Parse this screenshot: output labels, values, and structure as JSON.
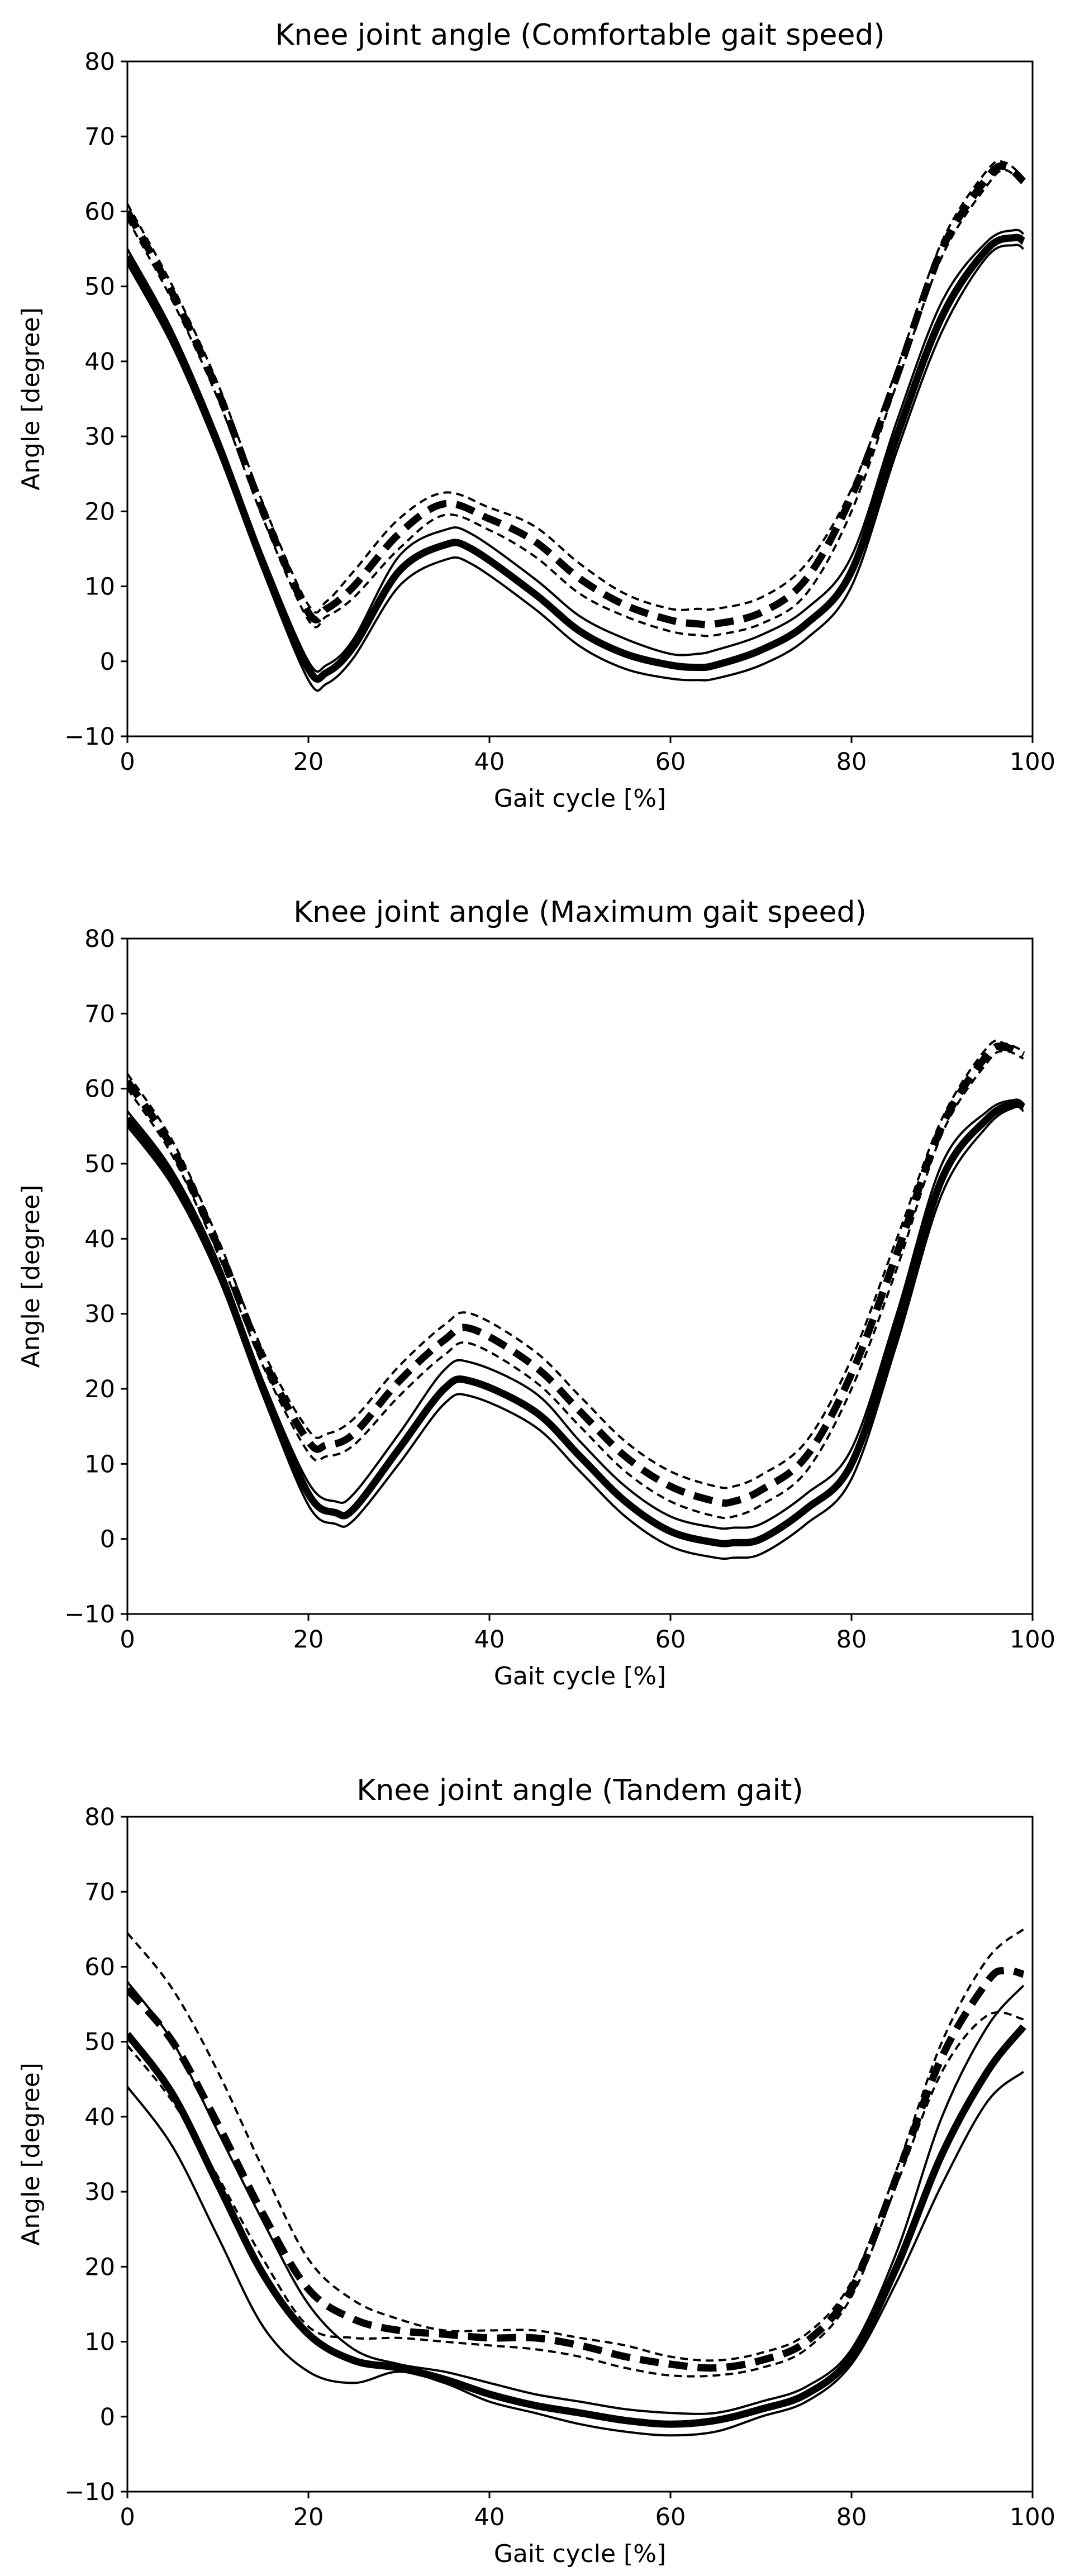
{
  "chart_data": [
    {
      "type": "line",
      "title": "Knee joint angle (Comfortable gait speed)",
      "xlabel": "Gait cycle [%]",
      "ylabel": "Angle [degree]",
      "xlim": [
        0,
        100
      ],
      "ylim": [
        -10,
        80
      ],
      "xticks": [
        "0",
        "20",
        "40",
        "60",
        "80",
        "100"
      ],
      "yticks": [
        "−10",
        "0",
        "10",
        "20",
        "30",
        "40",
        "50",
        "60",
        "70",
        "80"
      ],
      "grid": false,
      "series": [
        {
          "name": "solid-mean",
          "style": "solid-thick",
          "x": [
            0,
            5,
            10,
            15,
            20,
            22,
            25,
            30,
            35,
            38,
            45,
            50,
            55,
            60,
            63,
            65,
            70,
            75,
            80,
            85,
            90,
            95,
            98,
            99
          ],
          "y": [
            54,
            43,
            29,
            13,
            -1,
            -1.5,
            2,
            12,
            15.5,
            15,
            9,
            4,
            1,
            -0.5,
            -0.8,
            -0.5,
            1.5,
            5,
            12,
            30,
            46,
            55,
            56.5,
            56
          ]
        },
        {
          "name": "solid-upper",
          "style": "solid-thin",
          "x": [
            0,
            5,
            10,
            15,
            20,
            22,
            25,
            30,
            35,
            38,
            45,
            50,
            55,
            60,
            63,
            65,
            70,
            75,
            80,
            85,
            90,
            95,
            98,
            99
          ],
          "y": [
            55,
            44,
            30,
            14,
            0,
            -0.5,
            3,
            14,
            17.5,
            17,
            11,
            6,
            3,
            1,
            1,
            1.5,
            3.5,
            7,
            14,
            32,
            48,
            56,
            57.5,
            57
          ]
        },
        {
          "name": "solid-lower",
          "style": "solid-thin",
          "x": [
            0,
            5,
            10,
            15,
            20,
            22,
            25,
            30,
            35,
            38,
            45,
            50,
            55,
            60,
            63,
            65,
            70,
            75,
            80,
            85,
            90,
            95,
            98,
            99
          ],
          "y": [
            53,
            42,
            28,
            12,
            -2.5,
            -3,
            0.5,
            10,
            13.5,
            13,
            7,
            2,
            -1,
            -2.3,
            -2.5,
            -2.3,
            -0.5,
            3,
            10,
            28,
            44,
            54,
            55.5,
            55
          ]
        },
        {
          "name": "dashed-mean",
          "style": "dashed-thick",
          "x": [
            0,
            5,
            10,
            15,
            20,
            22,
            25,
            30,
            35,
            40,
            45,
            50,
            55,
            60,
            63,
            65,
            70,
            75,
            80,
            85,
            90,
            95,
            97,
            99
          ],
          "y": [
            60,
            49,
            36,
            20,
            6.5,
            7,
            10,
            17,
            21,
            19,
            16,
            11,
            7.5,
            5.5,
            5,
            5,
            6.5,
            11,
            22,
            38,
            55,
            64.5,
            66,
            64
          ]
        },
        {
          "name": "dashed-upper",
          "style": "dashed-thin",
          "x": [
            0,
            5,
            10,
            15,
            20,
            22,
            25,
            30,
            35,
            40,
            45,
            50,
            55,
            60,
            63,
            65,
            70,
            75,
            80,
            85,
            90,
            95,
            97,
            99
          ],
          "y": [
            61,
            50,
            37,
            21,
            7.5,
            8,
            12,
            19,
            22.5,
            20.5,
            18,
            13,
            9,
            7,
            7,
            7,
            8.5,
            13,
            23,
            39,
            56,
            65.5,
            66.5,
            64.5
          ]
        },
        {
          "name": "dashed-lower",
          "style": "dashed-thin",
          "x": [
            0,
            5,
            10,
            15,
            20,
            22,
            25,
            30,
            35,
            40,
            45,
            50,
            55,
            60,
            63,
            65,
            70,
            75,
            80,
            85,
            90,
            95,
            97,
            99
          ],
          "y": [
            59,
            48,
            35,
            19,
            5.5,
            6,
            8.5,
            15,
            19.5,
            17.5,
            14,
            9,
            6,
            4,
            3.5,
            3.5,
            5,
            9,
            20,
            37,
            54,
            63.5,
            65.5,
            63.5
          ]
        }
      ]
    },
    {
      "type": "line",
      "title": "Knee joint angle (Maximum gait speed)",
      "xlabel": "Gait cycle [%]",
      "ylabel": "Angle [degree]",
      "xlim": [
        0,
        100
      ],
      "ylim": [
        -10,
        80
      ],
      "xticks": [
        "0",
        "20",
        "40",
        "60",
        "80",
        "100"
      ],
      "yticks": [
        "−10",
        "0",
        "10",
        "20",
        "30",
        "40",
        "50",
        "60",
        "70",
        "80"
      ],
      "grid": false,
      "series": [
        {
          "name": "solid-mean",
          "style": "solid-thick",
          "x": [
            0,
            5,
            10,
            15,
            20,
            23,
            25,
            30,
            35,
            38,
            45,
            50,
            55,
            60,
            65,
            67,
            70,
            75,
            80,
            85,
            90,
            95,
            98,
            99
          ],
          "y": [
            56,
            48,
            36,
            20,
            6,
            3.5,
            4,
            12,
            20,
            21,
            17,
            11,
            5,
            1,
            -0.5,
            -0.5,
            0,
            4,
            10,
            28,
            48,
            56,
            58,
            57.5
          ]
        },
        {
          "name": "solid-upper",
          "style": "solid-thin",
          "x": [
            0,
            5,
            10,
            15,
            20,
            23,
            25,
            30,
            35,
            38,
            45,
            50,
            55,
            60,
            65,
            67,
            70,
            75,
            80,
            85,
            90,
            95,
            98,
            99
          ],
          "y": [
            57,
            49,
            37,
            21,
            7.5,
            5,
            6,
            14,
            22.5,
            23.5,
            19.5,
            13,
            7,
            3,
            1.5,
            1.5,
            2,
            6,
            12,
            30,
            50,
            57,
            58.5,
            58
          ]
        },
        {
          "name": "solid-lower",
          "style": "solid-thin",
          "x": [
            0,
            5,
            10,
            15,
            20,
            23,
            25,
            30,
            35,
            38,
            45,
            50,
            55,
            60,
            65,
            67,
            70,
            75,
            80,
            85,
            90,
            95,
            98,
            99
          ],
          "y": [
            55,
            47,
            35,
            19,
            4.5,
            2,
            2.5,
            10,
            18,
            19,
            15,
            9,
            3,
            -1,
            -2.5,
            -2.5,
            -2,
            2,
            8,
            26,
            46,
            55,
            57.5,
            57
          ]
        },
        {
          "name": "dashed-mean",
          "style": "dashed-thick",
          "x": [
            0,
            5,
            10,
            15,
            20,
            22,
            25,
            30,
            35,
            38,
            45,
            50,
            55,
            60,
            65,
            67,
            70,
            75,
            80,
            85,
            90,
            95,
            97,
            99
          ],
          "y": [
            61,
            52,
            39,
            24,
            13,
            12.5,
            14,
            21,
            26.5,
            28,
            23,
            17,
            11,
            7,
            5,
            5,
            6.5,
            11,
            22,
            38,
            55,
            64.5,
            65.5,
            64.5
          ]
        },
        {
          "name": "dashed-upper",
          "style": "dashed-thin",
          "x": [
            0,
            5,
            10,
            15,
            20,
            22,
            25,
            30,
            35,
            38,
            45,
            50,
            55,
            60,
            65,
            67,
            70,
            75,
            80,
            85,
            90,
            95,
            97,
            99
          ],
          "y": [
            62,
            53,
            40,
            25,
            14.5,
            14,
            16,
            23,
            28.5,
            30,
            25,
            19,
            13,
            9,
            7,
            7,
            8.5,
            13,
            24,
            40,
            56,
            65.5,
            66,
            65
          ]
        },
        {
          "name": "dashed-lower",
          "style": "dashed-thin",
          "x": [
            0,
            5,
            10,
            15,
            20,
            22,
            25,
            30,
            35,
            38,
            45,
            50,
            55,
            60,
            65,
            67,
            70,
            75,
            80,
            85,
            90,
            95,
            97,
            99
          ],
          "y": [
            60,
            51,
            38,
            23,
            11.5,
            11,
            12.5,
            19,
            24.5,
            26,
            21,
            15,
            9,
            5,
            3,
            3,
            4.5,
            9,
            20,
            36,
            54,
            63.5,
            65,
            64
          ]
        }
      ]
    },
    {
      "type": "line",
      "title": "Knee joint angle (Tandem gait)",
      "xlabel": "Gait cycle [%]",
      "ylabel": "Angle [degree]",
      "xlim": [
        0,
        100
      ],
      "ylim": [
        -10,
        80
      ],
      "xticks": [
        "0",
        "20",
        "40",
        "60",
        "80",
        "100"
      ],
      "yticks": [
        "−10",
        "0",
        "10",
        "20",
        "30",
        "40",
        "50",
        "60",
        "70",
        "80"
      ],
      "grid": false,
      "series": [
        {
          "name": "solid-mean",
          "style": "solid-thick",
          "x": [
            0,
            5,
            10,
            15,
            20,
            25,
            30,
            35,
            40,
            45,
            50,
            55,
            60,
            65,
            70,
            75,
            80,
            85,
            90,
            95,
            99
          ],
          "y": [
            51,
            43,
            31,
            19,
            11,
            7.5,
            6.5,
            5,
            3,
            1.5,
            0.5,
            -0.5,
            -1,
            -0.5,
            1,
            3,
            8,
            20,
            35,
            46,
            52
          ]
        },
        {
          "name": "solid-upper",
          "style": "solid-thin",
          "x": [
            0,
            5,
            10,
            15,
            20,
            25,
            30,
            35,
            40,
            45,
            50,
            55,
            60,
            65,
            70,
            75,
            80,
            85,
            90,
            95,
            99
          ],
          "y": [
            58,
            50,
            38,
            26,
            15,
            9,
            7,
            6,
            4.5,
            3,
            2,
            1,
            0.5,
            0.5,
            2,
            4,
            9,
            22,
            40,
            52,
            57.5
          ]
        },
        {
          "name": "solid-lower",
          "style": "solid-thin",
          "x": [
            0,
            5,
            10,
            15,
            20,
            25,
            30,
            35,
            40,
            45,
            50,
            55,
            60,
            65,
            70,
            75,
            80,
            85,
            90,
            95,
            99
          ],
          "y": [
            44,
            36,
            24,
            12,
            6,
            4.5,
            6,
            4.5,
            2,
            0.5,
            -1,
            -2,
            -2.5,
            -2,
            0,
            2,
            7,
            18,
            31,
            42,
            46
          ]
        },
        {
          "name": "dashed-mean",
          "style": "dashed-thick",
          "x": [
            0,
            5,
            10,
            15,
            20,
            25,
            30,
            35,
            40,
            45,
            50,
            55,
            60,
            65,
            70,
            75,
            80,
            85,
            90,
            95,
            97,
            99
          ],
          "y": [
            57,
            50,
            39,
            27,
            17,
            13,
            11.5,
            11,
            10.5,
            10.5,
            9.5,
            8,
            7,
            6.5,
            7.5,
            10,
            17,
            32,
            48,
            58,
            59.5,
            59
          ]
        },
        {
          "name": "dashed-upper",
          "style": "dashed-thin",
          "x": [
            0,
            5,
            10,
            15,
            20,
            25,
            30,
            35,
            40,
            45,
            50,
            55,
            60,
            65,
            70,
            75,
            80,
            85,
            90,
            95,
            99
          ],
          "y": [
            64.5,
            57,
            46,
            33,
            21,
            15.5,
            13,
            11.5,
            11.5,
            11.5,
            10.5,
            9.5,
            8,
            7.5,
            8.5,
            11,
            18,
            33,
            50,
            61,
            65
          ]
        },
        {
          "name": "dashed-lower",
          "style": "dashed-thin",
          "x": [
            0,
            5,
            10,
            15,
            20,
            25,
            30,
            35,
            40,
            45,
            50,
            55,
            60,
            65,
            70,
            75,
            80,
            85,
            90,
            95,
            99
          ],
          "y": [
            49.5,
            42,
            32,
            21,
            12,
            10.5,
            10.5,
            10,
            9.5,
            9,
            8,
            6.5,
            5.5,
            5.5,
            6.5,
            9,
            16,
            31,
            46,
            53.5,
            53
          ]
        }
      ]
    }
  ]
}
